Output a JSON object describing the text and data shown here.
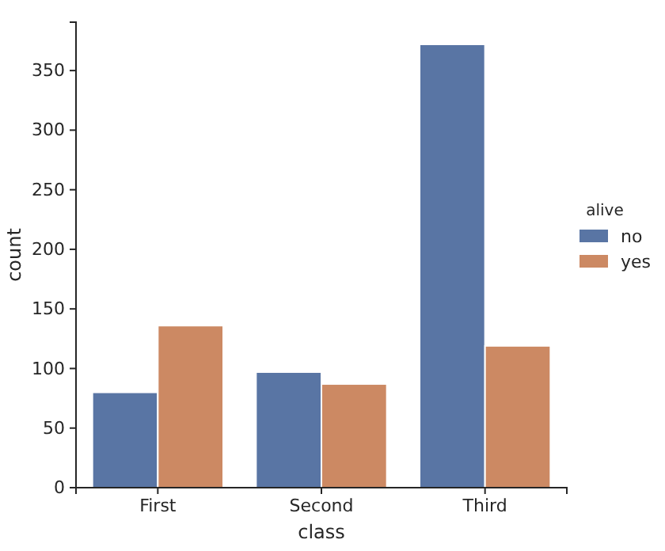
{
  "chart_data": {
    "type": "bar",
    "xlabel": "class",
    "ylabel": "count",
    "legend_title": "alive",
    "categories": [
      "First",
      "Second",
      "Third"
    ],
    "series": [
      {
        "name": "no",
        "color": "#5975a4",
        "values": [
          80,
          97,
          372
        ]
      },
      {
        "name": "yes",
        "color": "#cc8963",
        "values": [
          136,
          87,
          119
        ]
      }
    ],
    "ylim": [
      0,
      390.6
    ],
    "yticks": [
      0,
      50,
      100,
      150,
      200,
      250,
      300,
      350
    ],
    "legend": "right",
    "grid": false
  }
}
